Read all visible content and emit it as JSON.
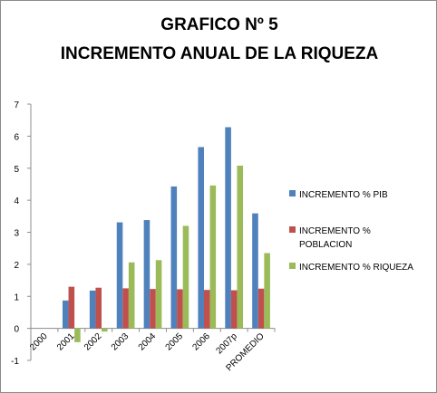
{
  "chart_data": {
    "type": "bar",
    "title_lines": [
      "GRAFICO Nº 5",
      "INCREMENTO ANUAL DE LA RIQUEZA"
    ],
    "categories": [
      "2000",
      "2001",
      "2002",
      "2003",
      "2004",
      "2005",
      "2006",
      "2007p",
      "PROMEDIO"
    ],
    "series": [
      {
        "name": "INCREMENTO % PIB",
        "color": "#4f81bd",
        "values": [
          0,
          0.87,
          1.18,
          3.31,
          3.38,
          4.43,
          5.66,
          6.28,
          3.59
        ]
      },
      {
        "name": "INCREMENTO % POBLACION",
        "color": "#c0504d",
        "values": [
          0,
          1.3,
          1.27,
          1.25,
          1.23,
          1.22,
          1.2,
          1.19,
          1.24
        ]
      },
      {
        "name": "INCREMENTO % RIQUEZA",
        "color": "#9bbb59",
        "values": [
          0,
          -0.43,
          -0.1,
          2.06,
          2.13,
          3.2,
          4.46,
          5.08,
          2.35
        ]
      }
    ],
    "legend_lines": [
      [
        "INCREMENTO % PIB"
      ],
      [
        "INCREMENTO %",
        "POBLACION"
      ],
      [
        "INCREMENTO % RIQUEZA"
      ]
    ],
    "yticks": [
      "-1",
      "0",
      "1",
      "2",
      "3",
      "4",
      "5",
      "6",
      "7"
    ],
    "ylim": [
      -1,
      7
    ],
    "xlabel": "",
    "ylabel": "",
    "grid": false,
    "legend_position": "right"
  }
}
